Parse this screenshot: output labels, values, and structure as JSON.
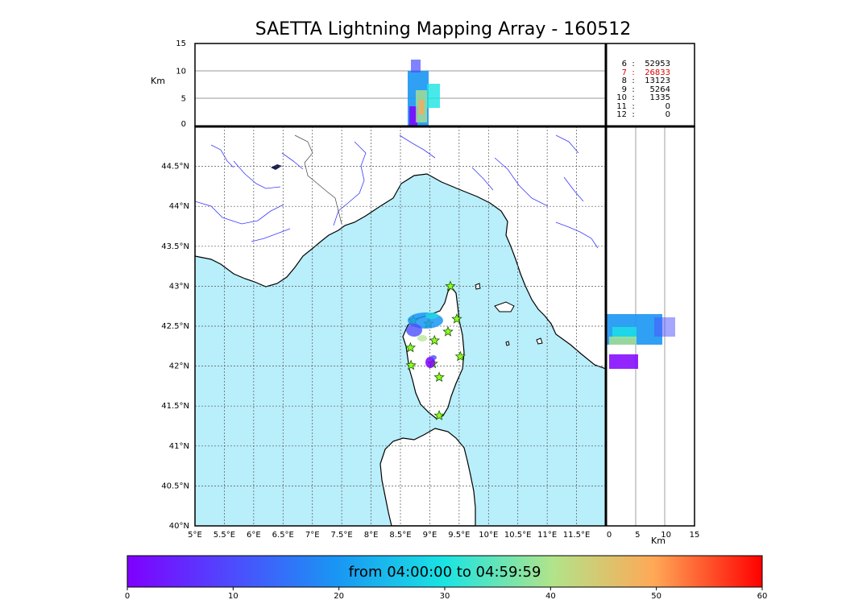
{
  "title": "SAETTA Lightning Mapping Array - 160512",
  "colors": {
    "sea": "#b9eefb",
    "land": "#ffffff",
    "coast": "#000000",
    "rivers": "#3a3aff",
    "borders": "#444444",
    "grid": "#555555",
    "star_fill": "#88ff22",
    "star_stroke": "#225500"
  },
  "map": {
    "lon_ticks": [
      "5°E",
      "5.5°E",
      "6°E",
      "6.5°E",
      "7°E",
      "7.5°E",
      "8°E",
      "8.5°E",
      "9°E",
      "9.5°E",
      "10°E",
      "10.5°E",
      "11°E",
      "11.5°E"
    ],
    "lat_ticks": [
      "40°N",
      "40.5°N",
      "41°N",
      "41.5°N",
      "42°N",
      "42.5°N",
      "43°N",
      "43.5°N",
      "44°N",
      "44.5°N"
    ],
    "lon_range": [
      5,
      12
    ],
    "lat_range": [
      40,
      45
    ]
  },
  "top_panel": {
    "ylabel": "Km",
    "y_ticks": [
      "0",
      "5",
      "10",
      "15"
    ]
  },
  "right_panel": {
    "xlabel": "Km",
    "x_ticks": [
      "0",
      "5",
      "10",
      "15"
    ]
  },
  "stats": [
    {
      "label": "6",
      "value": "52953",
      "highlight": false
    },
    {
      "label": "7",
      "value": "26833",
      "highlight": true
    },
    {
      "label": "8",
      "value": "13123",
      "highlight": false
    },
    {
      "label": "9",
      "value": "5264",
      "highlight": false
    },
    {
      "label": "10",
      "value": "1335",
      "highlight": false
    },
    {
      "label": "11",
      "value": "0",
      "highlight": false
    },
    {
      "label": "12",
      "value": "0",
      "highlight": false
    }
  ],
  "stats_highlight_color": "#dd0000",
  "stations": [
    {
      "lon": 9.35,
      "lat": 43.0
    },
    {
      "lon": 8.72,
      "lat": 42.57
    },
    {
      "lon": 8.98,
      "lat": 42.53
    },
    {
      "lon": 9.46,
      "lat": 42.59
    },
    {
      "lon": 9.31,
      "lat": 42.43
    },
    {
      "lon": 9.08,
      "lat": 42.32
    },
    {
      "lon": 8.67,
      "lat": 42.23
    },
    {
      "lon": 9.52,
      "lat": 42.12
    },
    {
      "lon": 8.68,
      "lat": 42.01
    },
    {
      "lon": 9.05,
      "lat": 42.03
    },
    {
      "lon": 9.16,
      "lat": 41.86
    },
    {
      "lon": 9.16,
      "lat": 41.38
    }
  ],
  "colorbar": {
    "caption": "from 04:00:00 to 04:59:59",
    "ticks": [
      "0",
      "10",
      "20",
      "30",
      "40",
      "50",
      "60"
    ],
    "range": [
      0,
      60
    ]
  }
}
